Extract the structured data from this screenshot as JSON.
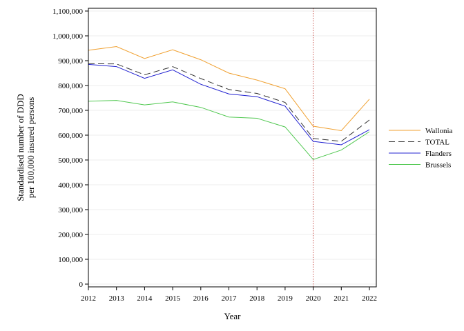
{
  "chart_data": {
    "type": "line",
    "xlabel": "Year",
    "ylabel": [
      "Standardised number of DDD",
      "per 100,000 insured persons"
    ],
    "x": [
      2012,
      2013,
      2014,
      2015,
      2016,
      2017,
      2018,
      2019,
      2020,
      2021,
      2022
    ],
    "xlim": [
      2012,
      2022
    ],
    "ylim": [
      0,
      1100000
    ],
    "yticks": [
      0,
      100000,
      200000,
      300000,
      400000,
      500000,
      600000,
      700000,
      800000,
      900000,
      1000000,
      1100000
    ],
    "ytick_labels": [
      "0",
      "100,000",
      "200,000",
      "300,000",
      "400,000",
      "500,000",
      "600,000",
      "700,000",
      "800,000",
      "900,000",
      "1,000,000",
      "1,100,000"
    ],
    "xtick_labels": [
      "2012",
      "2013",
      "2014",
      "2015",
      "2016",
      "2017",
      "2018",
      "2019",
      "2020",
      "2021",
      "2022"
    ],
    "grid": "horizontal",
    "legend_position": "right",
    "reference_line": {
      "x": 2020,
      "color": "#c8504b",
      "style": "dotted"
    },
    "series": [
      {
        "name": "Wallonia",
        "color": "#f0a030",
        "dash": "solid",
        "values": [
          942000,
          957000,
          909000,
          944000,
          904000,
          850000,
          822000,
          787000,
          636000,
          618000,
          745000
        ]
      },
      {
        "name": "TOTAL",
        "color": "#333333",
        "dash": "dashed",
        "values": [
          888000,
          887000,
          843000,
          876000,
          828000,
          784000,
          768000,
          732000,
          587000,
          575000,
          661000
        ]
      },
      {
        "name": "Flanders",
        "color": "#2020d0",
        "dash": "solid",
        "values": [
          885000,
          876000,
          829000,
          863000,
          805000,
          766000,
          755000,
          717000,
          575000,
          561000,
          622000
        ]
      },
      {
        "name": "Brussels",
        "color": "#50c850",
        "dash": "solid",
        "values": [
          737000,
          740000,
          722000,
          734000,
          712000,
          673000,
          668000,
          633000,
          502000,
          540000,
          614000
        ]
      }
    ]
  }
}
